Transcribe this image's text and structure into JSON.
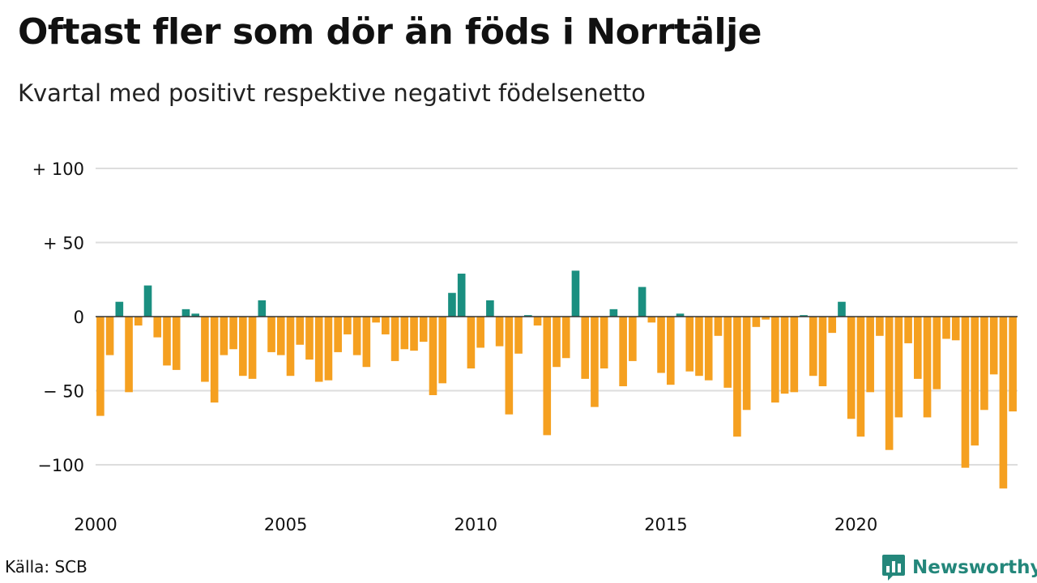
{
  "title": "Oftast fler som dör än föds i Norrtälje",
  "subtitle": "Kvartal med positivt respektive negativt födelsenetto",
  "source": "Källa: SCB",
  "brand": "Newsworthy",
  "colors": {
    "positive": "#1a8f80",
    "negative": "#f5a020",
    "grid": "#dddddd",
    "baseline": "#333333",
    "brand": "#24877b"
  },
  "chart_data": {
    "type": "bar",
    "ylim": [
      -125,
      110
    ],
    "yticks": [
      {
        "value": 100,
        "label": "+ 100"
      },
      {
        "value": 50,
        "label": "+  50"
      },
      {
        "value": 0,
        "label": "0"
      },
      {
        "value": -50,
        "label": "− 50"
      },
      {
        "value": -100,
        "label": "−100"
      }
    ],
    "xticks": [
      {
        "value": 2000,
        "label": "2000"
      },
      {
        "value": 2005,
        "label": "2005"
      },
      {
        "value": 2010,
        "label": "2010"
      },
      {
        "value": 2015,
        "label": "2015"
      },
      {
        "value": 2020,
        "label": "2020"
      }
    ],
    "start_year": 2000,
    "values": [
      -67,
      -26,
      10,
      -51,
      -6,
      21,
      -14,
      -33,
      -36,
      5,
      2,
      -44,
      -58,
      -26,
      -22,
      -40,
      -42,
      11,
      -24,
      -26,
      -40,
      -19,
      -29,
      -44,
      -43,
      -24,
      -12,
      -26,
      -34,
      -4,
      -12,
      -30,
      -22,
      -23,
      -17,
      -53,
      -45,
      16,
      29,
      -35,
      -21,
      11,
      -20,
      -66,
      -25,
      1,
      -6,
      -80,
      -34,
      -28,
      31,
      -42,
      -61,
      -35,
      5,
      -47,
      -30,
      20,
      -4,
      -38,
      -46,
      2,
      -37,
      -40,
      -43,
      -13,
      -48,
      -81,
      -63,
      -7,
      -2,
      -58,
      -52,
      -51,
      1,
      -40,
      -47,
      -11,
      10,
      -69,
      -81,
      -51,
      -13,
      -90,
      -68,
      -18,
      -42,
      -68,
      -49,
      -15,
      -16,
      -102,
      -87,
      -63,
      -39,
      -116,
      -64
    ]
  }
}
